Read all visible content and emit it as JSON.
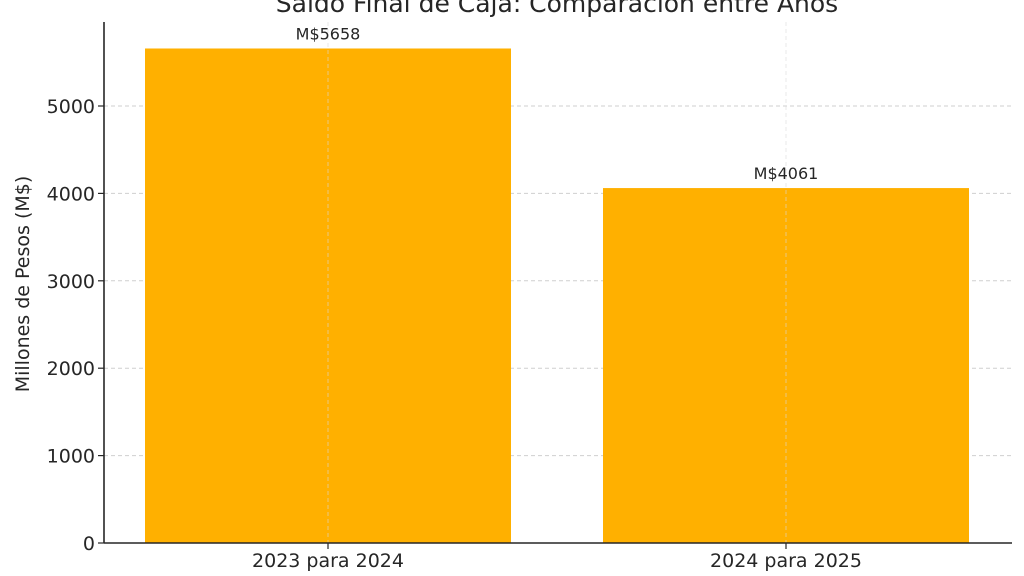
{
  "chart_data": {
    "type": "bar",
    "title": "Saldo Final de Caja: Comparación entre Años",
    "xlabel": "",
    "ylabel": "Millones de Pesos (M$)",
    "categories": [
      "2023 para 2024",
      "2024 para 2025"
    ],
    "values": [
      5658,
      4061
    ],
    "data_labels": [
      "M$5658",
      "M$4061"
    ],
    "yticks": [
      0,
      1000,
      2000,
      3000,
      4000,
      5000
    ],
    "ylim": [
      0,
      5900
    ],
    "grid": true,
    "bar_color": "#FFB000"
  }
}
